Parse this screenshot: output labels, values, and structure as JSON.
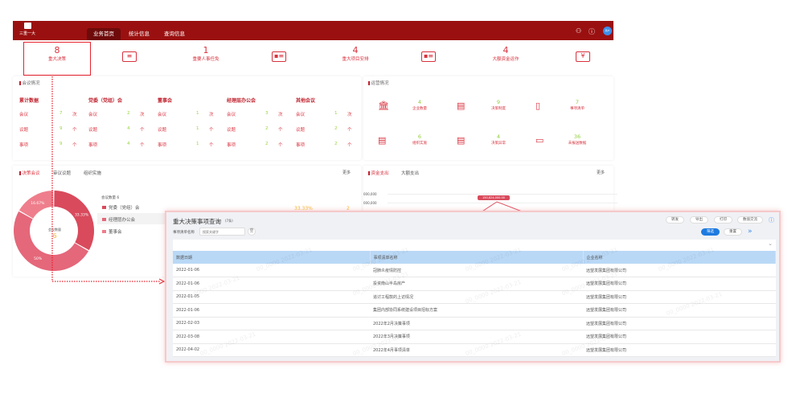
{
  "header": {
    "logo_text": "三重一大",
    "nav": [
      {
        "label": "业务首页",
        "active": true
      },
      {
        "label": "统计信息"
      },
      {
        "label": "查询信息"
      }
    ],
    "icons": [
      "user-group-icon",
      "help-icon"
    ],
    "avatar_text": "用户"
  },
  "stats": [
    {
      "value": "8",
      "label": "重大决策",
      "selected": true
    },
    {
      "value": "1",
      "label": "重要人事任免"
    },
    {
      "value": "4",
      "label": "重大项目安排"
    },
    {
      "value": "4",
      "label": "大额资金运作"
    }
  ],
  "meeting": {
    "title": "会议情况",
    "columns": [
      {
        "title": "累计数据",
        "rows": [
          [
            "会议",
            "7",
            "次"
          ],
          [
            "议题",
            "9",
            "个"
          ],
          [
            "事项",
            "9",
            "个"
          ]
        ]
      },
      {
        "title": "党委（党组）会",
        "rows": [
          [
            "会议",
            "2",
            "次"
          ],
          [
            "议题",
            "4",
            "个"
          ],
          [
            "事项",
            "4",
            "个"
          ]
        ]
      },
      {
        "title": "董事会",
        "rows": [
          [
            "会议",
            "1",
            "次"
          ],
          [
            "议题",
            "1",
            "个"
          ],
          [
            "事项",
            "1",
            "个"
          ]
        ]
      },
      {
        "title": "经理层办公会",
        "rows": [
          [
            "会议",
            "3",
            "次"
          ],
          [
            "议题",
            "2",
            "个"
          ],
          [
            "事项",
            "2",
            "个"
          ]
        ]
      },
      {
        "title": "其他会议",
        "rows": [
          [
            "会议",
            "1",
            "次"
          ],
          [
            "议题",
            "2",
            "个"
          ],
          [
            "事项",
            "2",
            "个"
          ]
        ]
      }
    ]
  },
  "supervision": {
    "title": "运营情况",
    "items": [
      {
        "value": "4",
        "label": "企业数量",
        "icon": "bank-icon"
      },
      {
        "value": "9",
        "label": "决策制度",
        "icon": "document-stamp-icon"
      },
      {
        "value": "7",
        "label": "事项清单",
        "icon": "file-list-icon"
      },
      {
        "value": "6",
        "label": "组织实施",
        "icon": "document-clock-icon"
      },
      {
        "value": "4",
        "label": "决策异常",
        "icon": "document-alert-icon"
      },
      {
        "value": "36",
        "label": "未报送数据",
        "icon": "image-clock-icon"
      }
    ]
  },
  "decision": {
    "tabs": [
      "决策会议",
      "审议议题",
      "组织实施"
    ],
    "more": "更多",
    "count_label": "会议数量 6",
    "center_label": "会议数量",
    "center_value": "6",
    "slices": [
      {
        "label": "党委（党组）会",
        "percent": 33.33,
        "pct_text": "33.33%",
        "count": "2",
        "color": "#d94a5c"
      },
      {
        "label": "经理层办公会",
        "percent": 50,
        "pct_text": "50%",
        "color": "#e5677a"
      },
      {
        "label": "董事会",
        "percent": 16.67,
        "pct_text": "16.67%",
        "color": "#ef7e8c"
      }
    ]
  },
  "fund": {
    "tabs": [
      "资金支出",
      "大额支出"
    ],
    "more": "更多",
    "y_ticks": [
      "000,000",
      "000,000"
    ],
    "tooltip": "150,824,000.00"
  },
  "modal": {
    "title": "重大决策事项查询",
    "count": "(7条)",
    "filter_label": "事项清单名称",
    "filter_placeholder": "搜索关键字",
    "clear_label": "空",
    "buttons": [
      "转发",
      "导出",
      "打印",
      "数值交流"
    ],
    "search": "筛选",
    "reset": "重置",
    "expand": "»",
    "columns": [
      "数据日期",
      "事项清单名称",
      "企业名称"
    ],
    "rows": [
      [
        "2022-01-06",
        "冠肺炎疫情防控",
        "远望发展集团有限公司"
      ],
      [
        "2022-01-06",
        "投资南山半岛房产",
        "远望发展集团有限公司"
      ],
      [
        "2022-01-05",
        "追讨工程款的上访情况",
        "远望发展集团有限公司"
      ],
      [
        "2022-01-06",
        "集团内部协同系统建设项目招标方案",
        "远望发展集团有限公司"
      ],
      [
        "2022-02-03",
        "2022年2月决策事项",
        "远望发展集团有限公司"
      ],
      [
        "2022-03-08",
        "2022年3月决策事项",
        "远望发展集团有限公司"
      ],
      [
        "2022-04-02",
        "2022年4月事项清单",
        "远望发展集团有限公司"
      ]
    ],
    "watermark": "00_0000 2022-03-21"
  },
  "colors": {
    "brand": "#9a1010",
    "accent": "#d8323e",
    "value_green": "#9ad43d",
    "primary_button": "#1e7be0"
  }
}
